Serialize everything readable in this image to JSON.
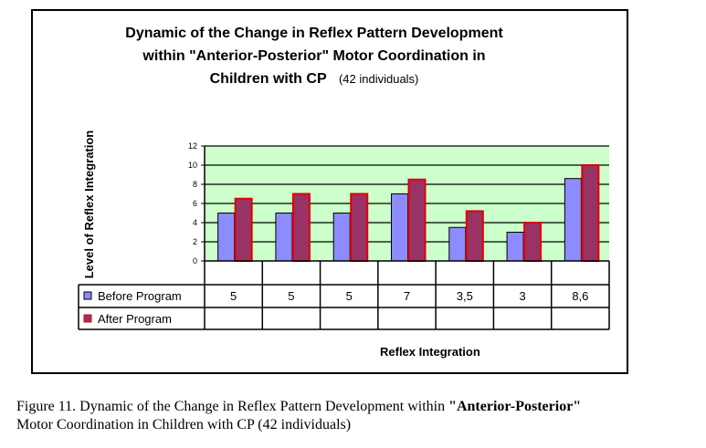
{
  "chart_data": {
    "type": "bar",
    "title_line1": "Dynamic of the Change in Reflex Pattern Development",
    "title_line2": "within  \"Anterior-Posterior\" Motor Coordination in",
    "title_line3": "Children with CP",
    "subtitle": "(42 individuals)",
    "xlabel": "Reflex Integration",
    "ylabel": "Level of Reflex Integration",
    "ylim": [
      0,
      12
    ],
    "yticks": [
      "0",
      "2",
      "4",
      "6",
      "8",
      "10",
      "12"
    ],
    "grid": true,
    "legend": "table-left",
    "categories": [
      "",
      "",
      "",
      "",
      "",
      "",
      ""
    ],
    "series": [
      {
        "name": "Before Program",
        "color": "#8c8cff",
        "values": [
          5,
          5,
          5,
          7,
          3.5,
          3,
          8.6
        ],
        "labels": [
          "5",
          "5",
          "5",
          "7",
          "3,5",
          "3",
          "8,6"
        ]
      },
      {
        "name": "After Program",
        "color": "#993366",
        "edge": "#e00000",
        "values": [
          6.5,
          7,
          7,
          8.5,
          5.2,
          4,
          10
        ],
        "labels": [
          "",
          "",
          "",
          "",
          "",
          "",
          ""
        ]
      }
    ],
    "plot_background": "#ccffcc"
  },
  "caption": {
    "prefix": "Figure 11. Dynamic of the Change in Reflex Pattern Development within ",
    "bold": "\"Anterior-Posterior\"",
    "suffix": "Motor Coordination in Children with CP (42 individuals)"
  }
}
